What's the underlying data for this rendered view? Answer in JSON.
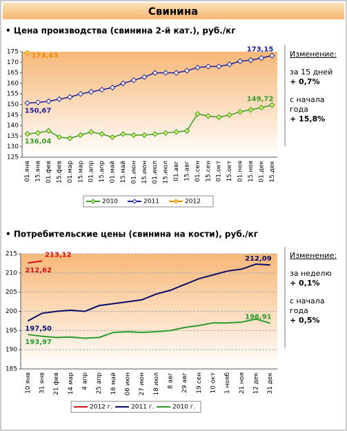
{
  "title": "Свинина",
  "chart_data": [
    {
      "type": "line",
      "title": "• Цена производства (свинина 2-й кат.), руб./кг",
      "categories": [
        "01.янв",
        "15.янв",
        "01.фев",
        "15.фев",
        "01.мар",
        "15.мар",
        "01.апр",
        "15.апр",
        "01.май",
        "15.май",
        "01.июн",
        "15.июн",
        "01.июл",
        "15.июл",
        "01.авг",
        "15.авг",
        "01.сен",
        "15.сен",
        "01.окт",
        "15.окт",
        "01.ноя",
        "15.ноя",
        "01.дек",
        "15.дек"
      ],
      "series": [
        {
          "name": "2010",
          "color": "#3a9a2a",
          "marker_fill": "#d8f060",
          "values": [
            136.04,
            136.5,
            137.5,
            134.5,
            134,
            135.5,
            137,
            136,
            134.5,
            136,
            135.5,
            135.5,
            136,
            136.5,
            137,
            137.5,
            145.5,
            144.5,
            144,
            145,
            146.5,
            147.5,
            148.5,
            149.72
          ],
          "value_labels": [
            "136,04",
            null,
            null,
            null,
            null,
            null,
            null,
            null,
            null,
            null,
            null,
            null,
            null,
            null,
            null,
            null,
            null,
            null,
            null,
            null,
            null,
            null,
            null,
            "149,72"
          ]
        },
        {
          "name": "2011",
          "color": "#1c1c9a",
          "marker_fill": "#ffffff",
          "values": [
            150.67,
            151,
            151.5,
            152.5,
            153.5,
            155,
            156,
            157,
            158,
            160,
            161.5,
            163,
            165,
            165,
            165,
            166,
            167.5,
            168,
            168,
            169,
            170.5,
            171,
            172,
            173.15
          ],
          "value_labels": [
            "150,67",
            null,
            null,
            null,
            null,
            null,
            null,
            null,
            null,
            null,
            null,
            null,
            null,
            null,
            null,
            null,
            null,
            null,
            null,
            null,
            null,
            null,
            null,
            "173,15"
          ]
        },
        {
          "name": "2012",
          "color": "#f08c00",
          "marker_fill": "#ffd060",
          "values": [
            174.43,
            null,
            null,
            null,
            null,
            null,
            null,
            null,
            null,
            null,
            null,
            null,
            null,
            null,
            null,
            null,
            null,
            null,
            null,
            null,
            null,
            null,
            null,
            null
          ],
          "value_labels": [
            "174,43",
            null,
            null,
            null,
            null,
            null,
            null,
            null,
            null,
            null,
            null,
            null,
            null,
            null,
            null,
            null,
            null,
            null,
            null,
            null,
            null,
            null,
            null,
            null
          ]
        }
      ],
      "ylim": [
        125,
        175
      ],
      "yticks": [
        125,
        130,
        135,
        140,
        145,
        150,
        155,
        160,
        165,
        170,
        175
      ],
      "grid": false,
      "markers": true,
      "side_note": [
        "Изменение:",
        "за 15 дней",
        "+ 0,7%",
        "с начала года",
        "+ 15,8%"
      ]
    },
    {
      "type": "line",
      "title": "• Потребительские цены (свинина на кости), руб./кг",
      "categories": [
        "10 янв",
        "31 янв",
        "21 фев",
        "14 мар",
        "4 апр",
        "25 апр",
        "16 май",
        "06 июн",
        "27 июн",
        "18 июл",
        "8 авг",
        "29 авг",
        "19 сен",
        "10 окт",
        "1 нояб",
        "21 ноя",
        "12 дек",
        "31 дек"
      ],
      "series": [
        {
          "name": "2012 г.",
          "color": "#d01010",
          "values": [
            212.62,
            213.12,
            null,
            null,
            null,
            null,
            null,
            null,
            null,
            null,
            null,
            null,
            null,
            null,
            null,
            null,
            null,
            null
          ],
          "value_labels": [
            "212,62",
            "213,12",
            null,
            null,
            null,
            null,
            null,
            null,
            null,
            null,
            null,
            null,
            null,
            null,
            null,
            null,
            null,
            null
          ]
        },
        {
          "name": "2011 г.",
          "color": "#0a0a6a",
          "values": [
            197.5,
            199.5,
            200,
            200.3,
            200,
            201.5,
            202,
            202.5,
            203,
            204.5,
            205.5,
            207,
            208.5,
            209.5,
            210.5,
            211,
            212.3,
            212.09
          ],
          "value_labels": [
            "197,50",
            null,
            null,
            null,
            null,
            null,
            null,
            null,
            null,
            null,
            null,
            null,
            null,
            null,
            null,
            null,
            null,
            "212,09"
          ]
        },
        {
          "name": "2010 г.",
          "color": "#2a9a2a",
          "values": [
            193.97,
            193.5,
            193.2,
            193.3,
            193,
            193.2,
            194.5,
            194.7,
            194.5,
            194.7,
            195,
            195.8,
            196.3,
            197,
            197,
            197.2,
            198,
            196.91
          ],
          "value_labels": [
            "193,97",
            null,
            null,
            null,
            null,
            null,
            null,
            null,
            null,
            null,
            null,
            null,
            null,
            null,
            null,
            null,
            null,
            "196,91"
          ]
        }
      ],
      "ylim": [
        185,
        215
      ],
      "yticks": [
        185,
        190,
        195,
        200,
        205,
        210,
        215
      ],
      "grid": true,
      "markers": false,
      "side_note": [
        "Изменение:",
        "за неделю",
        "+ 0,1%",
        "с начала года",
        "+ 0,5%"
      ]
    }
  ]
}
